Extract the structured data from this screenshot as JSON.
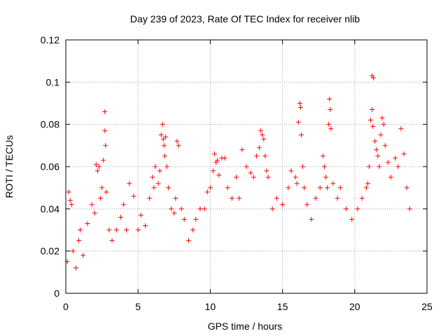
{
  "chart_data": {
    "type": "scatter",
    "title": "Day 239 of 2023, Rate Of TEC Index for receiver nlib",
    "xlabel": "GPS time / hours",
    "ylabel": "ROTI / TECUs",
    "xlim": [
      0,
      25
    ],
    "ylim": [
      0,
      0.12
    ],
    "x_ticks": [
      0,
      5,
      10,
      15,
      20,
      25
    ],
    "y_ticks": [
      0,
      0.02,
      0.04,
      0.06,
      0.08,
      0.1,
      0.12
    ],
    "x_tick_labels": [
      "0",
      "5",
      "10",
      "15",
      "20",
      "25"
    ],
    "y_tick_labels": [
      "0",
      "0.02",
      "0.04",
      "0.06",
      "0.08",
      "0.1",
      "0.12"
    ],
    "grid": true,
    "marker": "plus",
    "colors": {
      "series": "#ff0000",
      "grid": "#a0a0a0",
      "axis": "#000000"
    },
    "series": [
      {
        "color": "#ff0000",
        "points": [
          [
            0.1,
            0.015
          ],
          [
            0.2,
            0.048
          ],
          [
            0.3,
            0.044
          ],
          [
            0.4,
            0.042
          ],
          [
            0.5,
            0.02
          ],
          [
            0.7,
            0.012
          ],
          [
            0.9,
            0.025
          ],
          [
            1.0,
            0.03
          ],
          [
            1.2,
            0.018
          ],
          [
            1.5,
            0.033
          ],
          [
            1.8,
            0.042
          ],
          [
            2.0,
            0.038
          ],
          [
            2.1,
            0.061
          ],
          [
            2.2,
            0.058
          ],
          [
            2.3,
            0.06
          ],
          [
            2.4,
            0.045
          ],
          [
            2.5,
            0.05
          ],
          [
            2.6,
            0.063
          ],
          [
            2.7,
            0.086
          ],
          [
            2.7,
            0.077
          ],
          [
            2.75,
            0.07
          ],
          [
            2.8,
            0.048
          ],
          [
            3.0,
            0.03
          ],
          [
            3.2,
            0.025
          ],
          [
            3.5,
            0.03
          ],
          [
            3.8,
            0.036
          ],
          [
            4.0,
            0.042
          ],
          [
            4.2,
            0.03
          ],
          [
            4.4,
            0.052
          ],
          [
            4.7,
            0.046
          ],
          [
            5.0,
            0.03
          ],
          [
            5.2,
            0.037
          ],
          [
            5.5,
            0.032
          ],
          [
            5.8,
            0.045
          ],
          [
            6.0,
            0.055
          ],
          [
            6.1,
            0.05
          ],
          [
            6.2,
            0.06
          ],
          [
            6.4,
            0.052
          ],
          [
            6.5,
            0.058
          ],
          [
            6.6,
            0.075
          ],
          [
            6.7,
            0.08
          ],
          [
            6.75,
            0.073
          ],
          [
            6.8,
            0.07
          ],
          [
            6.85,
            0.065
          ],
          [
            6.9,
            0.074
          ],
          [
            7.0,
            0.06
          ],
          [
            7.1,
            0.05
          ],
          [
            7.3,
            0.04
          ],
          [
            7.5,
            0.038
          ],
          [
            7.6,
            0.045
          ],
          [
            7.7,
            0.072
          ],
          [
            7.8,
            0.07
          ],
          [
            8.0,
            0.04
          ],
          [
            8.2,
            0.035
          ],
          [
            8.5,
            0.025
          ],
          [
            8.8,
            0.03
          ],
          [
            9.0,
            0.035
          ],
          [
            9.3,
            0.04
          ],
          [
            9.6,
            0.04
          ],
          [
            9.8,
            0.048
          ],
          [
            10.0,
            0.05
          ],
          [
            10.2,
            0.058
          ],
          [
            10.3,
            0.066
          ],
          [
            10.4,
            0.062
          ],
          [
            10.5,
            0.063
          ],
          [
            10.6,
            0.056
          ],
          [
            10.8,
            0.064
          ],
          [
            11.0,
            0.064
          ],
          [
            11.2,
            0.05
          ],
          [
            11.5,
            0.045
          ],
          [
            11.8,
            0.055
          ],
          [
            12.0,
            0.045
          ],
          [
            12.2,
            0.068
          ],
          [
            12.5,
            0.06
          ],
          [
            12.8,
            0.057
          ],
          [
            13.0,
            0.055
          ],
          [
            13.2,
            0.065
          ],
          [
            13.4,
            0.069
          ],
          [
            13.5,
            0.077
          ],
          [
            13.6,
            0.075
          ],
          [
            13.7,
            0.073
          ],
          [
            13.8,
            0.065
          ],
          [
            13.9,
            0.058
          ],
          [
            14.0,
            0.055
          ],
          [
            14.3,
            0.04
          ],
          [
            14.6,
            0.045
          ],
          [
            15.0,
            0.042
          ],
          [
            15.4,
            0.05
          ],
          [
            15.6,
            0.058
          ],
          [
            15.9,
            0.055
          ],
          [
            16.0,
            0.052
          ],
          [
            16.1,
            0.081
          ],
          [
            16.2,
            0.09
          ],
          [
            16.25,
            0.088
          ],
          [
            16.3,
            0.075
          ],
          [
            16.4,
            0.06
          ],
          [
            16.5,
            0.05
          ],
          [
            16.7,
            0.042
          ],
          [
            17.0,
            0.035
          ],
          [
            17.3,
            0.045
          ],
          [
            17.6,
            0.05
          ],
          [
            17.8,
            0.065
          ],
          [
            17.9,
            0.06
          ],
          [
            18.0,
            0.055
          ],
          [
            18.1,
            0.05
          ],
          [
            18.2,
            0.08
          ],
          [
            18.25,
            0.092
          ],
          [
            18.3,
            0.087
          ],
          [
            18.35,
            0.078
          ],
          [
            18.5,
            0.052
          ],
          [
            18.8,
            0.045
          ],
          [
            19.0,
            0.05
          ],
          [
            19.4,
            0.04
          ],
          [
            19.8,
            0.035
          ],
          [
            20.2,
            0.04
          ],
          [
            20.5,
            0.045
          ],
          [
            20.8,
            0.05
          ],
          [
            20.9,
            0.052
          ],
          [
            21.0,
            0.06
          ],
          [
            21.1,
            0.082
          ],
          [
            21.2,
            0.103
          ],
          [
            21.3,
            0.102
          ],
          [
            21.2,
            0.087
          ],
          [
            21.25,
            0.079
          ],
          [
            21.4,
            0.072
          ],
          [
            21.5,
            0.068
          ],
          [
            21.6,
            0.065
          ],
          [
            21.7,
            0.06
          ],
          [
            21.8,
            0.075
          ],
          [
            21.9,
            0.083
          ],
          [
            22.0,
            0.08
          ],
          [
            22.1,
            0.07
          ],
          [
            22.3,
            0.062
          ],
          [
            22.5,
            0.055
          ],
          [
            22.8,
            0.064
          ],
          [
            23.0,
            0.06
          ],
          [
            23.2,
            0.078
          ],
          [
            23.4,
            0.066
          ],
          [
            23.6,
            0.05
          ],
          [
            23.8,
            0.04
          ]
        ]
      }
    ]
  }
}
